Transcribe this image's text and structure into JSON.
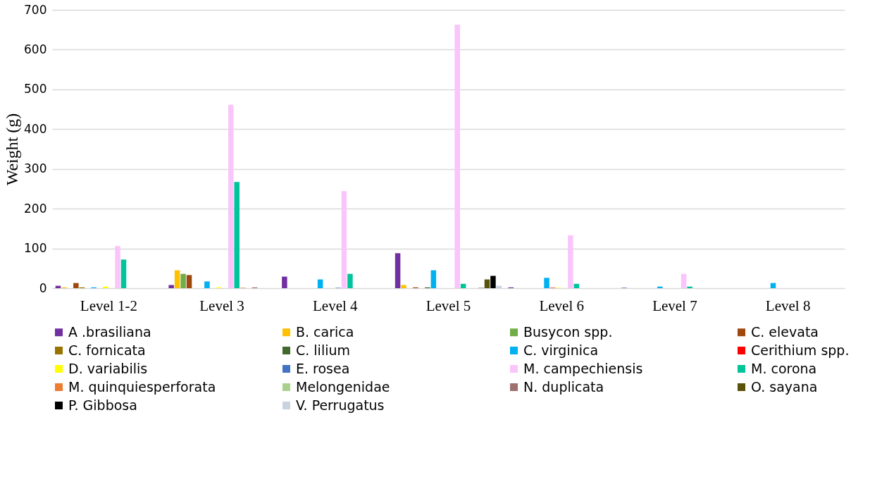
{
  "chart_data": {
    "type": "bar",
    "ylabel": "Weight (g)",
    "categories": [
      "Level 1-2",
      "Level 3",
      "Level 4",
      "Level 5",
      "Level 6",
      "Level 7",
      "Level 8"
    ],
    "ylim": [
      0,
      700
    ],
    "yticks": [
      0,
      100,
      200,
      300,
      400,
      500,
      600,
      700
    ],
    "grid": "y",
    "legend": "bottom",
    "series": [
      {
        "name": "A .brasiliana",
        "color": "#7030a0",
        "values": [
          6,
          8,
          29,
          88,
          2,
          1,
          null
        ]
      },
      {
        "name": "B. carica",
        "color": "#ffc000",
        "values": [
          2,
          45,
          null,
          8,
          null,
          null,
          null
        ]
      },
      {
        "name": "Busycon spp.",
        "color": "#70ad47",
        "values": [
          null,
          36,
          null,
          null,
          null,
          null,
          null
        ]
      },
      {
        "name": "C. elevata",
        "color": "#9e480e",
        "values": [
          13,
          33,
          null,
          2,
          null,
          null,
          null
        ]
      },
      {
        "name": "C. fornicata",
        "color": "#997300",
        "values": [
          2,
          null,
          null,
          null,
          null,
          null,
          null
        ]
      },
      {
        "name": "C. lilium",
        "color": "#43682b",
        "values": [
          null,
          null,
          null,
          2,
          null,
          null,
          null
        ]
      },
      {
        "name": "C. virginica",
        "color": "#00b0f0",
        "values": [
          2,
          17,
          22,
          45,
          26,
          4,
          13
        ]
      },
      {
        "name": "Cerithium spp.",
        "color": "#ff0000",
        "values": [
          null,
          null,
          null,
          null,
          1,
          null,
          null
        ]
      },
      {
        "name": "D. variabilis",
        "color": "#ffff00",
        "values": [
          4,
          2,
          null,
          null,
          1,
          null,
          null
        ]
      },
      {
        "name": "E. rosea",
        "color": "#4472c4",
        "values": [
          null,
          null,
          1,
          null,
          null,
          null,
          null
        ]
      },
      {
        "name": "M. campechiensis",
        "color": "#fac5fb",
        "values": [
          106,
          461,
          244,
          663,
          133,
          36,
          null
        ]
      },
      {
        "name": "M. corona",
        "color": "#00c49a",
        "values": [
          72,
          267,
          36,
          11,
          11,
          4,
          null
        ]
      },
      {
        "name": "M. quinquiesperforata",
        "color": "#ed7d31",
        "values": [
          null,
          1,
          null,
          null,
          null,
          null,
          null
        ]
      },
      {
        "name": "Melongenidae",
        "color": "#a9d18e",
        "values": [
          null,
          null,
          null,
          null,
          null,
          null,
          null
        ]
      },
      {
        "name": "N. duplicata",
        "color": "#9e7070",
        "values": [
          null,
          2,
          null,
          1,
          null,
          null,
          null
        ]
      },
      {
        "name": "O. sayana",
        "color": "#5a5208",
        "values": [
          null,
          null,
          null,
          22,
          null,
          null,
          null
        ]
      },
      {
        "name": "P. Gibbosa",
        "color": "#000000",
        "values": [
          null,
          null,
          null,
          31,
          null,
          null,
          null
        ]
      },
      {
        "name": "V. Perrugatus",
        "color": "#c9d3e0",
        "values": [
          null,
          null,
          null,
          6,
          null,
          null,
          null
        ]
      }
    ]
  }
}
